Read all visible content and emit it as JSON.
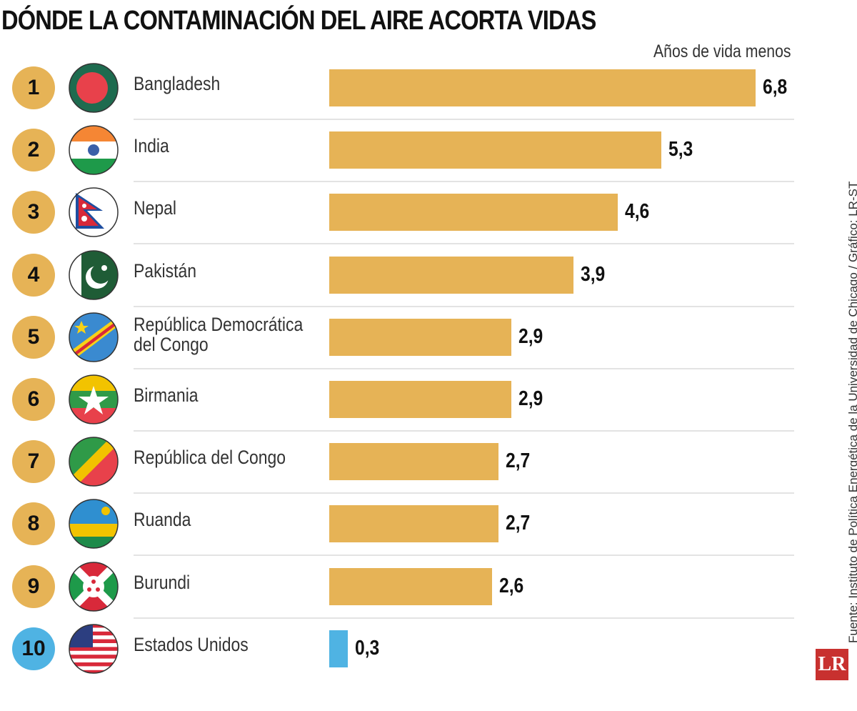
{
  "chart_data": {
    "type": "bar",
    "orientation": "horizontal",
    "title": "DÓNDE LA CONTAMINACIÓN DEL AIRE ACORTA VIDAS",
    "unit_label": "Años de vida menos",
    "ranks": [
      "1",
      "2",
      "3",
      "4",
      "5",
      "6",
      "7",
      "8",
      "9",
      "10"
    ],
    "categories": [
      "Bangladesh",
      "India",
      "Nepal",
      "Pakistán",
      "República Democrática del Congo",
      "Birmania",
      "República del Congo",
      "Ruanda",
      "Burundi",
      "Estados Unidos"
    ],
    "values": [
      6.8,
      5.3,
      4.6,
      3.9,
      2.9,
      2.9,
      2.7,
      2.7,
      2.6,
      0.3
    ],
    "value_labels": [
      "6,8",
      "5,3",
      "4,6",
      "3,9",
      "2,9",
      "2,9",
      "2,7",
      "2,7",
      "2,6",
      "0,3"
    ],
    "flag_icons": [
      "bangladesh-flag-icon",
      "india-flag-icon",
      "nepal-flag-icon",
      "pakistan-flag-icon",
      "drc-flag-icon",
      "myanmar-flag-icon",
      "congo-flag-icon",
      "rwanda-flag-icon",
      "burundi-flag-icon",
      "usa-flag-icon"
    ],
    "xlim": [
      0,
      6.8
    ],
    "colors": {
      "default": "#e6b356",
      "highlight": "#4fb3e3"
    },
    "grid": false
  },
  "source": "Fuente: Instituto de Política Energética de la Universidad de Chicago / Gráfico: LR-ST",
  "logo": "LR"
}
